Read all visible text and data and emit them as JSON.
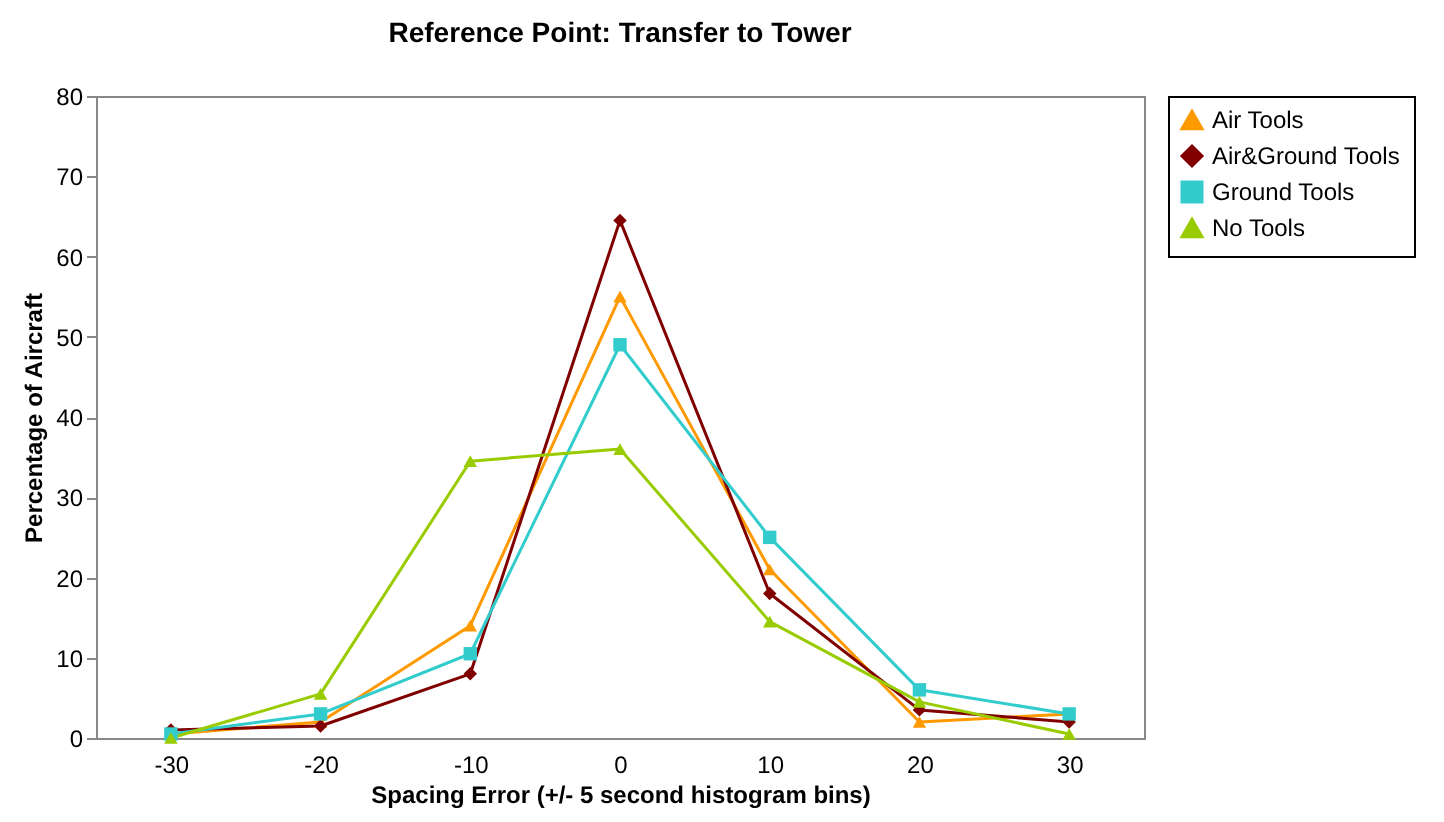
{
  "chart_data": {
    "type": "line",
    "title": "Reference Point: Transfer to Tower",
    "xlabel": "Spacing Error (+/- 5 second histogram bins)",
    "ylabel": "Percentage of Aircraft",
    "categories": [
      "-30",
      "-20",
      "-10",
      "0",
      "10",
      "20",
      "30"
    ],
    "series": [
      {
        "name": "Air Tools",
        "color": "#ff9900",
        "marker": "triangle",
        "values": [
          0.5,
          2,
          14,
          55,
          21,
          2,
          3
        ]
      },
      {
        "name": "Air&Ground Tools",
        "color": "#800000",
        "marker": "diamond",
        "values": [
          1,
          1.5,
          8,
          64.5,
          18,
          3.5,
          2
        ]
      },
      {
        "name": "Ground Tools",
        "color": "#33cccc",
        "marker": "square",
        "values": [
          0.5,
          3,
          10.5,
          49,
          25,
          6,
          3
        ]
      },
      {
        "name": "No Tools",
        "color": "#99cc00",
        "marker": "triangle",
        "values": [
          0,
          5.5,
          34.5,
          36,
          14.5,
          4.5,
          0.5
        ]
      }
    ],
    "ylim": [
      0,
      80
    ],
    "yticks": [
      0,
      10,
      20,
      30,
      40,
      50,
      60,
      70,
      80
    ],
    "grid": false,
    "legend": "right"
  }
}
